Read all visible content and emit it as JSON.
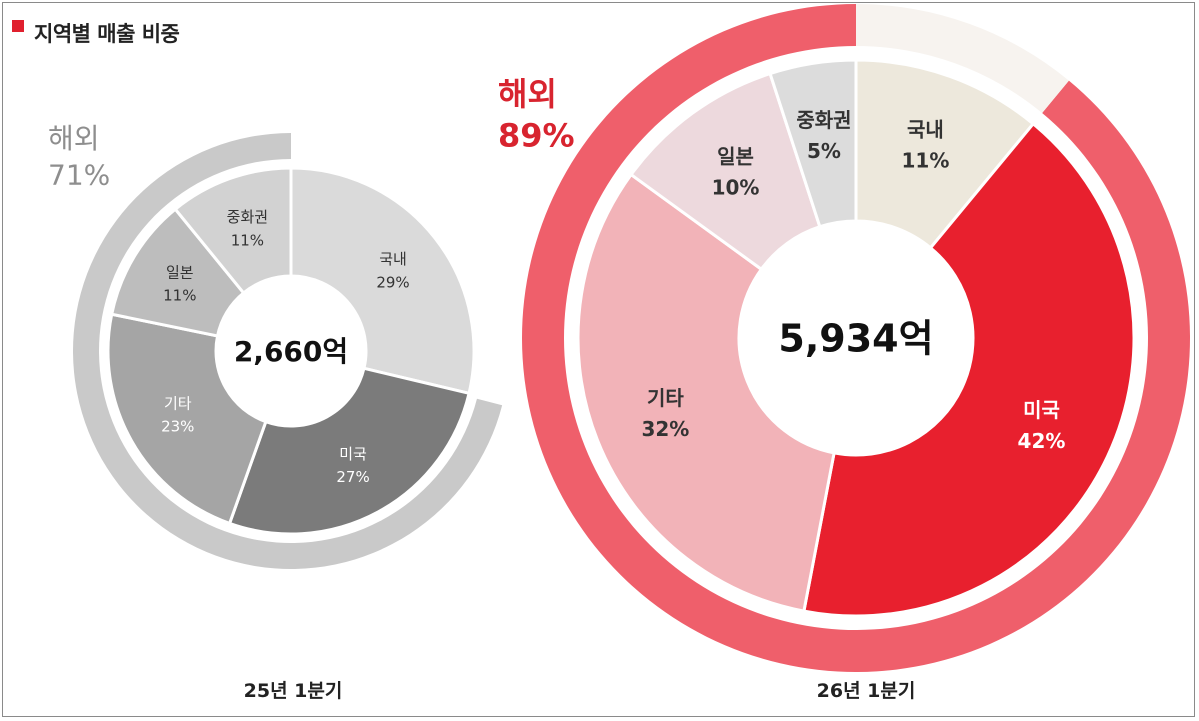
{
  "header": {
    "title": "지역별 매출 비중",
    "accent_color": "#e0202e"
  },
  "chart_data": [
    {
      "type": "pie",
      "variant": "donut",
      "center_label": "2,660억",
      "period_label": "25년 1분기",
      "outer_ring": {
        "label": "해외",
        "value_label": "71%",
        "value": 71,
        "color": "#c9c9c9"
      },
      "slices": [
        {
          "label": "국내",
          "value_label": "29%",
          "value": 29,
          "color": "#dadada",
          "text_color": "#333333"
        },
        {
          "label": "미국",
          "value_label": "27%",
          "value": 27,
          "color": "#7b7b7b",
          "text_color": "#ffffff"
        },
        {
          "label": "기타",
          "value_label": "23%",
          "value": 23,
          "color": "#a5a5a5",
          "text_color": "#ffffff"
        },
        {
          "label": "일본",
          "value_label": "11%",
          "value": 11,
          "color": "#bdbdbd",
          "text_color": "#333333"
        },
        {
          "label": "중화권",
          "value_label": "11%",
          "value": 11,
          "color": "#d2d2d2",
          "text_color": "#333333"
        }
      ]
    },
    {
      "type": "pie",
      "variant": "donut",
      "center_label": "5,934억",
      "period_label": "26년 1분기",
      "outer_ring": {
        "label": "해외",
        "value_label": "89%",
        "value": 89,
        "color": "#ef5f6b"
      },
      "slices": [
        {
          "label": "국내",
          "value_label": "11%",
          "value": 11,
          "color": "#ede8dc",
          "text_color": "#333333"
        },
        {
          "label": "미국",
          "value_label": "42%",
          "value": 42,
          "color": "#e8202e",
          "text_color": "#ffffff"
        },
        {
          "label": "기타",
          "value_label": "32%",
          "value": 32,
          "color": "#f2b3b8",
          "text_color": "#333333"
        },
        {
          "label": "일본",
          "value_label": "10%",
          "value": 10,
          "color": "#edd9dd",
          "text_color": "#333333"
        },
        {
          "label": "중화권",
          "value_label": "5%",
          "value": 5,
          "color": "#dcdcdc",
          "text_color": "#333333"
        }
      ]
    }
  ]
}
